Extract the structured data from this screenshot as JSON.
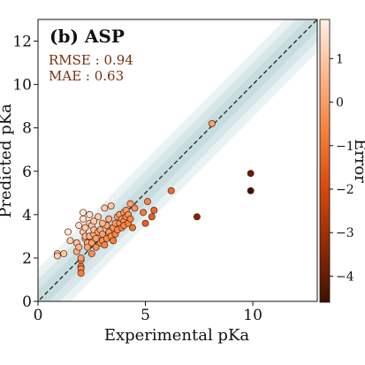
{
  "chart_data": {
    "type": "scatter",
    "panel_title": "(b) ASP",
    "xlabel": "Experimental pKa",
    "ylabel": "Predicted pKa",
    "colorbar_label": "Error",
    "xlim": [
      0,
      13
    ],
    "ylim": [
      0,
      13
    ],
    "x_ticks": [
      0,
      5,
      10
    ],
    "y_ticks": [
      0,
      2,
      4,
      6,
      8,
      10,
      12
    ],
    "colorbar_range": [
      -4.6,
      1.9
    ],
    "colorbar_ticks": [
      1,
      0,
      -1,
      -2,
      -3,
      -4
    ],
    "colorbar_tick_labels": [
      "1",
      "0",
      "−1",
      "−2",
      "−3",
      "−4"
    ],
    "metrics": [
      "RMSE : 0.94",
      "MAE : 0.63"
    ],
    "parity_line": true,
    "error_bands": [
      0.5,
      1.0,
      1.5
    ],
    "colors": {
      "band": "#5f9ea0",
      "metrics_text": "#7a2e0e",
      "colormap": [
        "#fef0e7",
        "#fdb58a",
        "#f5803a",
        "#d8480c",
        "#8f2a04",
        "#401102"
      ]
    },
    "points": [
      {
        "x": 0.9,
        "y": 2.2
      },
      {
        "x": 0.9,
        "y": 2.1
      },
      {
        "x": 1.2,
        "y": 2.2
      },
      {
        "x": 1.4,
        "y": 3.2
      },
      {
        "x": 1.5,
        "y": 2.8
      },
      {
        "x": 1.8,
        "y": 2.7
      },
      {
        "x": 1.8,
        "y": 2.3
      },
      {
        "x": 1.9,
        "y": 3.5
      },
      {
        "x": 1.9,
        "y": 2.5
      },
      {
        "x": 2.0,
        "y": 1.9
      },
      {
        "x": 2.0,
        "y": 1.6
      },
      {
        "x": 2.0,
        "y": 1.5
      },
      {
        "x": 2.0,
        "y": 1.3
      },
      {
        "x": 2.0,
        "y": 2.0
      },
      {
        "x": 2.1,
        "y": 3.2
      },
      {
        "x": 2.1,
        "y": 4.1
      },
      {
        "x": 2.1,
        "y": 3.8
      },
      {
        "x": 2.2,
        "y": 2.9
      },
      {
        "x": 2.2,
        "y": 3.4
      },
      {
        "x": 2.2,
        "y": 3.0
      },
      {
        "x": 2.3,
        "y": 2.7
      },
      {
        "x": 2.3,
        "y": 2.5
      },
      {
        "x": 2.4,
        "y": 3.6
      },
      {
        "x": 2.4,
        "y": 3.0
      },
      {
        "x": 2.5,
        "y": 2.2
      },
      {
        "x": 2.5,
        "y": 3.5
      },
      {
        "x": 2.5,
        "y": 2.7
      },
      {
        "x": 2.6,
        "y": 3.1
      },
      {
        "x": 2.6,
        "y": 3.3
      },
      {
        "x": 2.7,
        "y": 2.5
      },
      {
        "x": 2.7,
        "y": 2.9
      },
      {
        "x": 2.8,
        "y": 3.2
      },
      {
        "x": 2.8,
        "y": 3.9
      },
      {
        "x": 2.9,
        "y": 2.7
      },
      {
        "x": 2.9,
        "y": 3.3
      },
      {
        "x": 3.0,
        "y": 2.8
      },
      {
        "x": 3.0,
        "y": 3.1
      },
      {
        "x": 3.1,
        "y": 2.6
      },
      {
        "x": 3.1,
        "y": 4.3
      },
      {
        "x": 3.2,
        "y": 3.5
      },
      {
        "x": 3.2,
        "y": 2.9
      },
      {
        "x": 3.3,
        "y": 3.2
      },
      {
        "x": 3.3,
        "y": 3.8
      },
      {
        "x": 3.4,
        "y": 4.4
      },
      {
        "x": 3.4,
        "y": 3.0
      },
      {
        "x": 3.5,
        "y": 3.4
      },
      {
        "x": 3.5,
        "y": 2.8
      },
      {
        "x": 3.6,
        "y": 3.6
      },
      {
        "x": 3.6,
        "y": 3.1
      },
      {
        "x": 3.7,
        "y": 3.9
      },
      {
        "x": 3.7,
        "y": 3.3
      },
      {
        "x": 3.8,
        "y": 3.6
      },
      {
        "x": 3.8,
        "y": 4.0
      },
      {
        "x": 3.9,
        "y": 3.4
      },
      {
        "x": 3.9,
        "y": 3.8
      },
      {
        "x": 4.0,
        "y": 3.7
      },
      {
        "x": 4.0,
        "y": 4.1
      },
      {
        "x": 4.0,
        "y": 3.5
      },
      {
        "x": 4.1,
        "y": 3.9
      },
      {
        "x": 4.1,
        "y": 4.2
      },
      {
        "x": 4.2,
        "y": 3.6
      },
      {
        "x": 4.2,
        "y": 4.0
      },
      {
        "x": 4.3,
        "y": 3.8
      },
      {
        "x": 4.4,
        "y": 3.4
      },
      {
        "x": 3.0,
        "y": 3.6
      },
      {
        "x": 2.6,
        "y": 3.7
      },
      {
        "x": 2.4,
        "y": 4.0
      },
      {
        "x": 4.5,
        "y": 4.3
      },
      {
        "x": 4.3,
        "y": 4.5
      },
      {
        "x": 5.1,
        "y": 4.6
      },
      {
        "x": 4.9,
        "y": 4.1
      },
      {
        "x": 5.3,
        "y": 3.9
      },
      {
        "x": 5.4,
        "y": 4.2
      },
      {
        "x": 5.0,
        "y": 3.6
      },
      {
        "x": 6.2,
        "y": 5.1
      },
      {
        "x": 8.1,
        "y": 8.2
      },
      {
        "x": 7.4,
        "y": 3.9
      },
      {
        "x": 9.9,
        "y": 5.9
      },
      {
        "x": 9.9,
        "y": 5.1
      }
    ]
  }
}
